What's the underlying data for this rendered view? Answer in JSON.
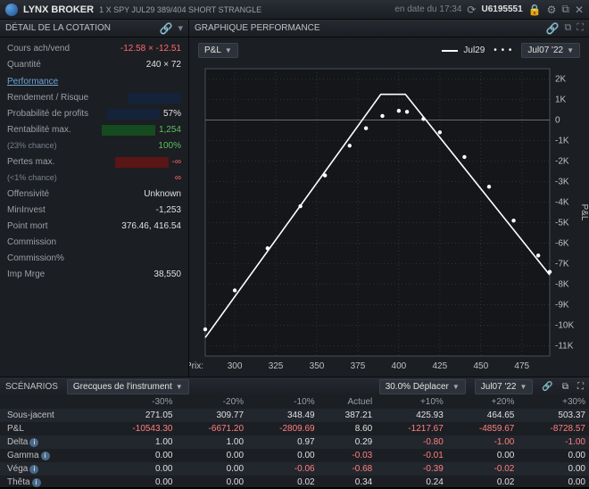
{
  "topbar": {
    "brand": "LYNX BROKER",
    "desc": "1 X SPY JUL29 389/404 SHORT STRANGLE",
    "timestamp": "en date du 17:34",
    "account": "U6195551"
  },
  "quote": {
    "title": "DÉTAIL DE LA COTATION",
    "bidask_label": "Cours ach/vend",
    "bidask_value": "-12.58 × -12.51",
    "qty_label": "Quantité",
    "qty_value": "240 × 72",
    "perf_link": "Performance",
    "rr_label": "Rendement / Risque",
    "rr_bar_pct": 20,
    "prob_label": "Probabilité de profits",
    "prob_value": "57%",
    "prob_bar_pct": 57,
    "maxret_label": "Rentabilité max.",
    "maxret_sub": "(23% chance)",
    "maxret_val": "1,254",
    "maxret_pct": "100%",
    "maxloss_label": "Pertes max.",
    "maxloss_sub": "(<1% chance)",
    "maxloss_val": "-∞",
    "maxloss_pct": "∞",
    "off_label": "Offensivité",
    "off_value": "Unknown",
    "mininv_label": "MinInvest",
    "mininv_value": "-1,253",
    "be_label": "Point mort",
    "be_value": "376.46, 416.54",
    "comm_label": "Commission",
    "commp_label": "Commission%",
    "impm_label": "Imp Mrge",
    "impm_value": "38,550"
  },
  "chart": {
    "title": "GRAPHIQUE PERFORMANCE",
    "y_dropdown": "P&L",
    "series1": "Jul29",
    "series2_dropdown": "Jul07 '22",
    "xlabel": "Prix:",
    "xticks": [
      "300",
      "325",
      "350",
      "375",
      "400",
      "425",
      "450",
      "475"
    ],
    "yticks": [
      "2K",
      "1K",
      "0",
      "-1K",
      "-2K",
      "-3K",
      "-4K",
      "-5K",
      "-6K",
      "-7K",
      "-8K",
      "-9K",
      "-10K",
      "-11K"
    ],
    "ylabel": "P&L",
    "plot_bg": "#141619",
    "grid_color": "#2d323a",
    "axis_color": "#4a505a",
    "line_jul29": {
      "color": "#ffffff",
      "points": [
        [
          282,
          -10600
        ],
        [
          389,
          1254
        ],
        [
          404,
          1254
        ],
        [
          492,
          -7550
        ]
      ],
      "dash": "4 3"
    },
    "line_today": {
      "color": "#ffffff",
      "style": "dots",
      "points": [
        [
          282,
          -10200
        ],
        [
          300,
          -8300
        ],
        [
          320,
          -6250
        ],
        [
          340,
          -4200
        ],
        [
          355,
          -2700
        ],
        [
          370,
          -1250
        ],
        [
          380,
          -400
        ],
        [
          390,
          200
        ],
        [
          400,
          450
        ],
        [
          405,
          400
        ],
        [
          415,
          50
        ],
        [
          425,
          -600
        ],
        [
          440,
          -1800
        ],
        [
          455,
          -3250
        ],
        [
          470,
          -4900
        ],
        [
          485,
          -6600
        ],
        [
          492,
          -7400
        ]
      ]
    }
  },
  "scenarios": {
    "title": "SCÉNARIOS",
    "greeks_label": "Grecques de l'instrument",
    "move_label": "30.0% Déplacer",
    "date_label": "Jul07 '22",
    "columns": [
      "",
      "-30%",
      "-20%",
      "-10%",
      "Actuel",
      "+10%",
      "+20%",
      "+30%"
    ],
    "rows": [
      {
        "label": "Sous-jacent",
        "info": false,
        "vals": [
          "271.05",
          "309.77",
          "348.49",
          "387.21",
          "425.93",
          "464.65",
          "503.37"
        ]
      },
      {
        "label": "P&L",
        "info": false,
        "vals": [
          "-10543.30",
          "-6671.20",
          "-2809.69",
          "8.60",
          "-1217.67",
          "-4859.67",
          "-8728.57"
        ]
      },
      {
        "label": "Delta",
        "info": true,
        "vals": [
          "1.00",
          "1.00",
          "0.97",
          "0.29",
          "-0.80",
          "-1.00",
          "-1.00"
        ]
      },
      {
        "label": "Gamma",
        "info": true,
        "vals": [
          "0.00",
          "0.00",
          "0.00",
          "-0.03",
          "-0.01",
          "0.00",
          "0.00"
        ]
      },
      {
        "label": "Véga",
        "info": true,
        "vals": [
          "0.00",
          "0.00",
          "-0.06",
          "-0.68",
          "-0.39",
          "-0.02",
          "0.00"
        ]
      },
      {
        "label": "Thêta",
        "info": true,
        "vals": [
          "0.00",
          "0.00",
          "0.02",
          "0.34",
          "0.24",
          "0.02",
          "0.00"
        ]
      }
    ]
  }
}
